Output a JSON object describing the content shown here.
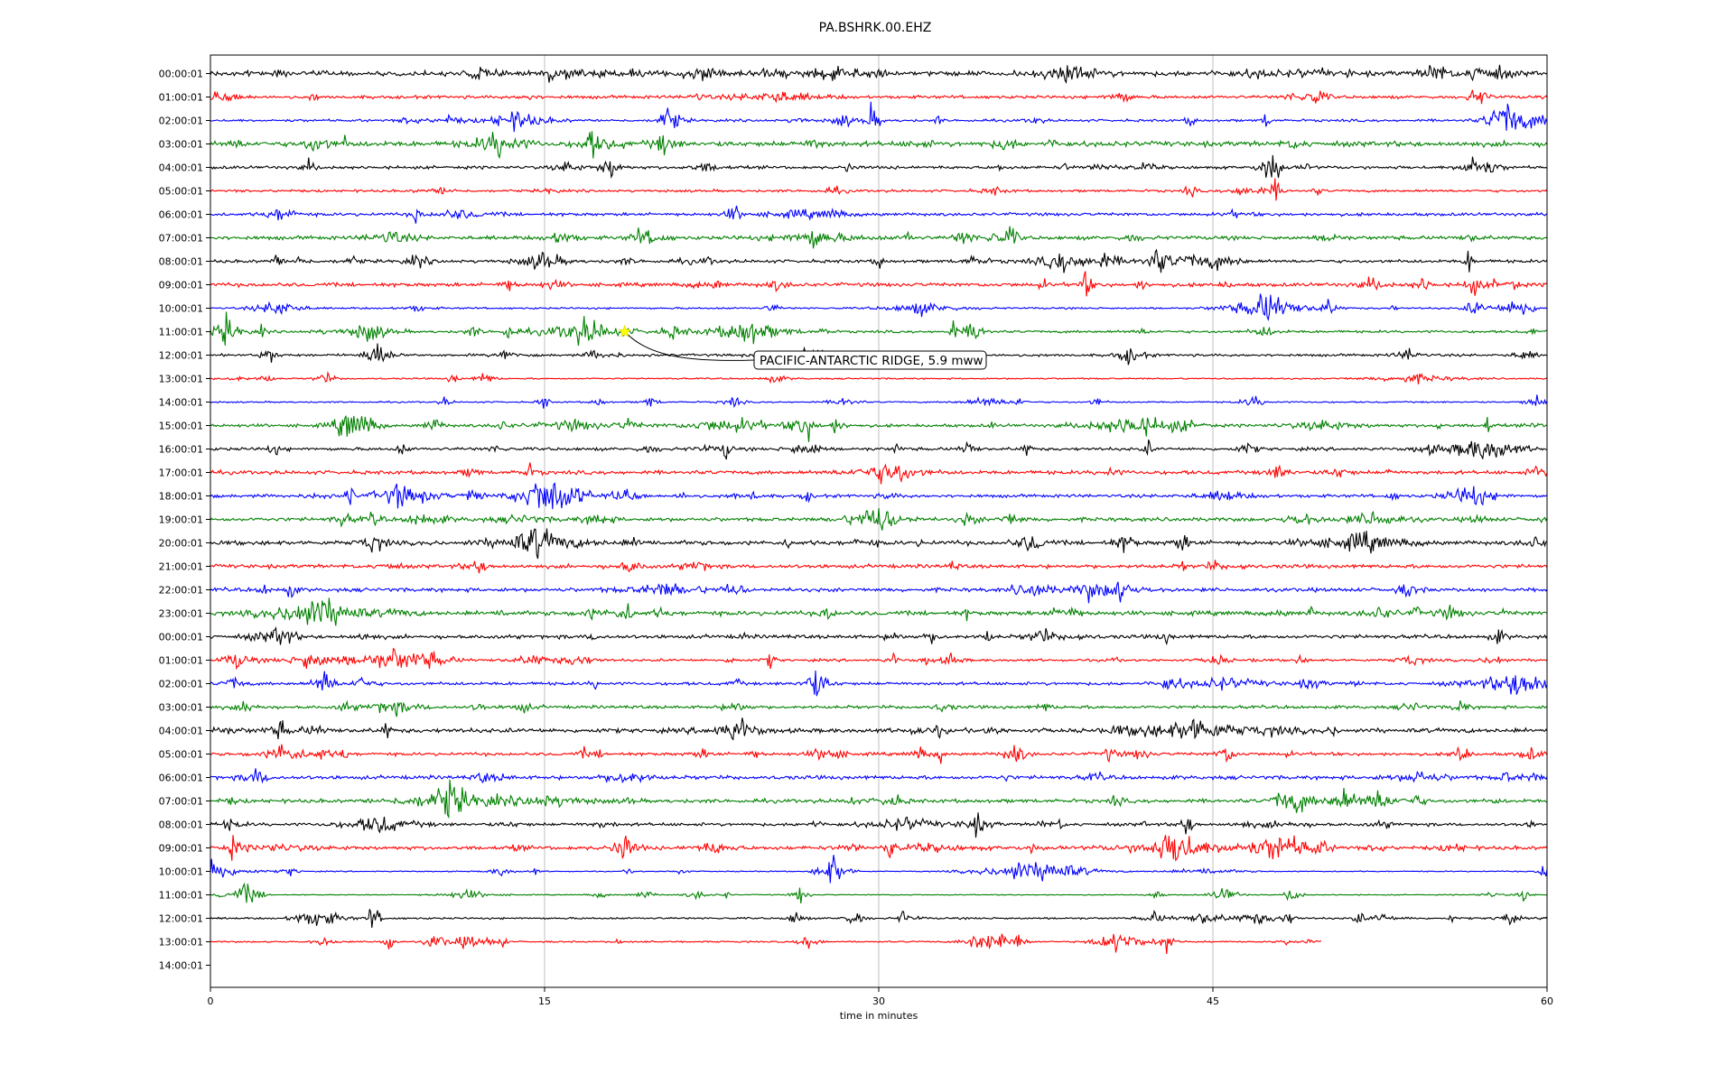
{
  "chart_data": {
    "type": "line",
    "title": "PA.BSHRK.00.EHZ",
    "xlabel": "time in minutes",
    "xlim": [
      0,
      60
    ],
    "x_ticks": [
      0,
      15,
      30,
      45,
      60
    ],
    "x_tick_labels": [
      "0",
      "15",
      "30",
      "45",
      "60"
    ],
    "grid": "vertical",
    "series_colors": [
      "#000000",
      "#ff0000",
      "#0000ff",
      "#008000"
    ],
    "hour_labels": [
      "00:00:01",
      "01:00:01",
      "02:00:01",
      "03:00:01",
      "04:00:01",
      "05:00:01",
      "06:00:01",
      "07:00:01",
      "08:00:01",
      "09:00:01",
      "10:00:01",
      "11:00:01",
      "12:00:01",
      "13:00:01",
      "14:00:01",
      "15:00:01",
      "16:00:01",
      "17:00:01",
      "18:00:01",
      "19:00:01",
      "20:00:01",
      "21:00:01",
      "22:00:01",
      "23:00:01",
      "00:00:01",
      "01:00:01",
      "02:00:01",
      "03:00:01",
      "04:00:01",
      "05:00:01",
      "06:00:01",
      "07:00:01",
      "08:00:01",
      "09:00:01",
      "10:00:01",
      "11:00:01",
      "12:00:01",
      "13:00:01",
      "14:00:01"
    ],
    "trace_end_minutes": [
      60,
      60,
      60,
      60,
      60,
      60,
      60,
      60,
      60,
      60,
      60,
      60,
      60,
      60,
      60,
      60,
      60,
      60,
      60,
      60,
      60,
      60,
      60,
      60,
      60,
      60,
      60,
      60,
      60,
      60,
      60,
      60,
      60,
      60,
      60,
      60,
      60,
      49.9,
      0
    ],
    "noise_level": [
      4,
      2.5,
      2,
      4,
      2.5,
      2,
      2.5,
      3,
      2.5,
      3,
      1.5,
      2,
      2,
      1.2,
      1.2,
      2.5,
      2.5,
      3,
      2.5,
      3,
      3.5,
      3,
      3,
      3.5,
      3,
      2,
      2.5,
      2.5,
      3.5,
      2.5,
      3,
      3,
      2.5,
      3,
      0.8,
      0.8,
      1.5,
      1.2,
      0
    ],
    "event_minute": 18.6,
    "event_row": 11,
    "annotation": {
      "text": "PACIFIC-ANTARCTIC RIDGE, 5.9 mww",
      "marker_color": "#ffff00"
    }
  }
}
